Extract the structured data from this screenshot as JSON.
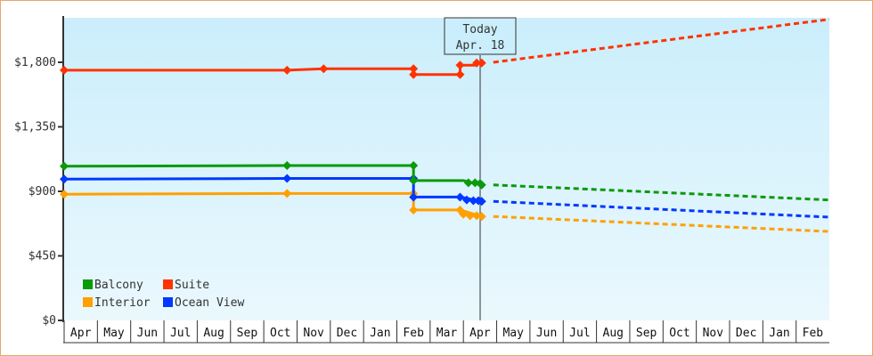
{
  "chart_data": {
    "type": "line",
    "title": "",
    "xlabel": "",
    "ylabel": "",
    "ylim": [
      0,
      2190
    ],
    "y_ticks": [
      {
        "value": 0,
        "label": "$0"
      },
      {
        "value": 450,
        "label": "$450"
      },
      {
        "value": 900,
        "label": "$900"
      },
      {
        "value": 1350,
        "label": "$1,350"
      },
      {
        "value": 1800,
        "label": "$1,800"
      }
    ],
    "x_tick_labels": [
      "Apr",
      "May",
      "Jun",
      "Jul",
      "Aug",
      "Sep",
      "Oct",
      "Nov",
      "Dec",
      "Jan",
      "Feb",
      "Mar",
      "Apr",
      "May",
      "Jun",
      "Jul",
      "Aug",
      "Sep",
      "Oct",
      "Nov",
      "Dec",
      "Jan",
      "Feb"
    ],
    "today_marker": {
      "line1": "Today",
      "line2": "Apr. 18",
      "month_index": 12.5
    },
    "grid": false,
    "legend": {
      "position": "bottom-left",
      "entries": [
        {
          "name": "Balcony",
          "color": "#0a9a0a"
        },
        {
          "name": "Suite",
          "color": "#ff3300"
        },
        {
          "name": "Interior",
          "color": "#ffa000"
        },
        {
          "name": "Ocean View",
          "color": "#0038ff"
        }
      ]
    },
    "series": [
      {
        "name": "Suite",
        "color": "#ff3300",
        "history": [
          [
            0,
            1745
          ],
          [
            6.7,
            1745
          ],
          [
            7.8,
            1755
          ],
          [
            10.5,
            1755
          ],
          [
            10.5,
            1715
          ],
          [
            11.9,
            1715
          ],
          [
            11.9,
            1780
          ],
          [
            12.4,
            1780
          ],
          [
            12.4,
            1795
          ],
          [
            12.55,
            1795
          ]
        ],
        "markers": [
          [
            0,
            1745
          ],
          [
            6.7,
            1745
          ],
          [
            7.8,
            1755
          ],
          [
            10.5,
            1755
          ],
          [
            10.5,
            1715
          ],
          [
            11.9,
            1715
          ],
          [
            11.9,
            1780
          ],
          [
            12.4,
            1795
          ],
          [
            12.55,
            1795
          ]
        ],
        "forecast": [
          [
            12.9,
            1800
          ],
          [
            23.0,
            2100
          ]
        ]
      },
      {
        "name": "Balcony",
        "color": "#0a9a0a",
        "history": [
          [
            0,
            1075
          ],
          [
            6.7,
            1080
          ],
          [
            10.5,
            1080
          ],
          [
            10.5,
            975
          ],
          [
            12.0,
            975
          ],
          [
            12.55,
            945
          ]
        ],
        "markers": [
          [
            0,
            1075
          ],
          [
            6.7,
            1080
          ],
          [
            10.5,
            1080
          ],
          [
            10.5,
            975
          ],
          [
            12.15,
            960
          ],
          [
            12.35,
            960
          ],
          [
            12.5,
            955
          ],
          [
            12.55,
            945
          ]
        ],
        "forecast": [
          [
            12.9,
            945
          ],
          [
            23.0,
            840
          ]
        ]
      },
      {
        "name": "Ocean View",
        "color": "#0038ff",
        "history": [
          [
            0,
            985
          ],
          [
            6.7,
            990
          ],
          [
            10.5,
            990
          ],
          [
            10.5,
            860
          ],
          [
            11.9,
            860
          ],
          [
            12.55,
            830
          ]
        ],
        "markers": [
          [
            0,
            985
          ],
          [
            6.7,
            990
          ],
          [
            10.5,
            990
          ],
          [
            10.5,
            860
          ],
          [
            11.9,
            860
          ],
          [
            12.1,
            840
          ],
          [
            12.3,
            835
          ],
          [
            12.45,
            835
          ],
          [
            12.55,
            830
          ]
        ],
        "forecast": [
          [
            12.9,
            830
          ],
          [
            23.0,
            720
          ]
        ]
      },
      {
        "name": "Interior",
        "color": "#ffa000",
        "history": [
          [
            0,
            880
          ],
          [
            6.7,
            885
          ],
          [
            10.5,
            885
          ],
          [
            10.5,
            770
          ],
          [
            11.9,
            770
          ],
          [
            12.55,
            725
          ]
        ],
        "markers": [
          [
            0,
            880
          ],
          [
            6.7,
            885
          ],
          [
            10.5,
            885
          ],
          [
            10.5,
            770
          ],
          [
            11.9,
            770
          ],
          [
            12.0,
            740
          ],
          [
            12.2,
            730
          ],
          [
            12.4,
            730
          ],
          [
            12.55,
            725
          ]
        ],
        "forecast": [
          [
            12.9,
            725
          ],
          [
            23.0,
            620
          ]
        ]
      }
    ]
  }
}
